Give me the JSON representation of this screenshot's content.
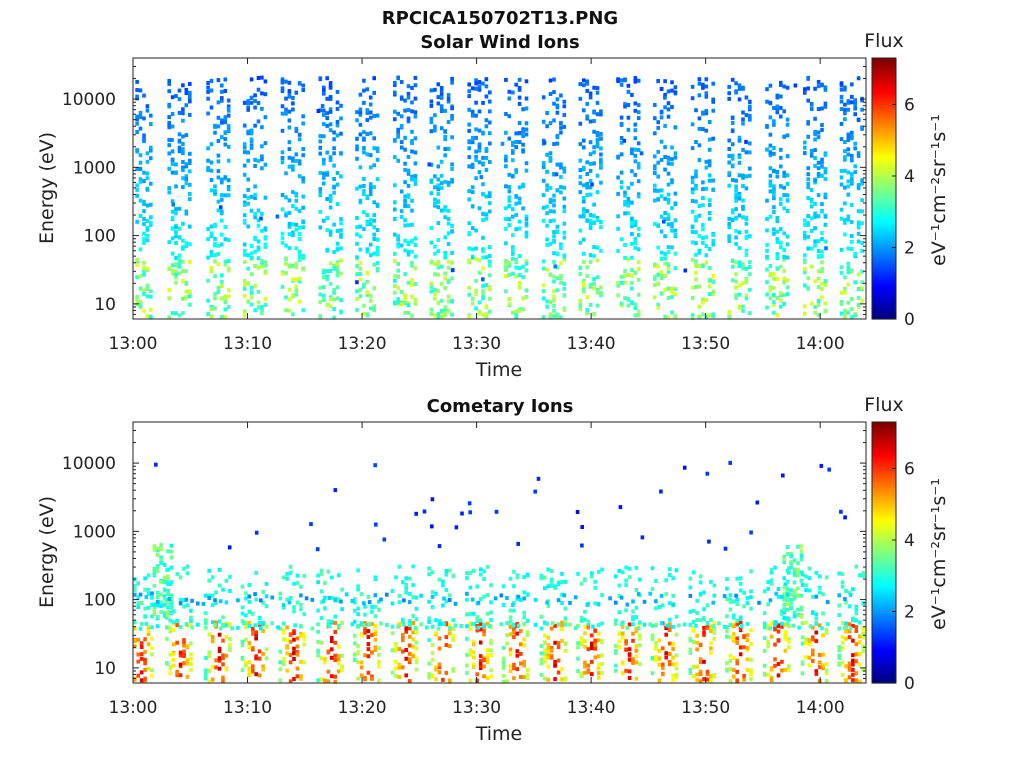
{
  "figure_title": "RPCICA150702T13.PNG",
  "chart_data": [
    {
      "type": "heatmap",
      "title": "Solar Wind Ions",
      "xlabel": "Time",
      "ylabel": "Energy (eV)",
      "y_scale": "log",
      "xlim": [
        "13:00",
        "14:04"
      ],
      "ylim": [
        6,
        40000
      ],
      "x_ticks": [
        "13:00",
        "13:10",
        "13:20",
        "13:30",
        "13:40",
        "13:50",
        "14:00"
      ],
      "y_ticks": [
        "10",
        "100",
        "1000",
        "10000"
      ],
      "y_tick_values": [
        10,
        100,
        1000,
        10000
      ],
      "colorbar": {
        "label": "Flux",
        "units": "eV⁻¹cm⁻²sr⁻¹s⁻¹",
        "range": [
          0,
          7.3
        ],
        "ticks": [
          "0",
          "2",
          "4",
          "6"
        ],
        "tick_values": [
          0,
          2,
          4,
          6
        ],
        "colormap": "jet"
      },
      "grid": false,
      "burst_times_min": [
        0.6,
        4.0,
        7.4,
        10.6,
        13.9,
        17.2,
        20.4,
        23.7,
        26.9,
        30.2,
        33.4,
        36.7,
        39.9,
        43.2,
        46.4,
        49.7,
        52.9,
        56.2,
        59.5,
        62.7
      ],
      "bursts": {
        "low_energy_ev": [
          6,
          45
        ],
        "low_flux": 3.4,
        "high_energy_ev": [
          45,
          20000
        ],
        "high_flux": 1.3
      }
    },
    {
      "type": "heatmap",
      "title": "Cometary Ions",
      "xlabel": "Time",
      "ylabel": "Energy (eV)",
      "y_scale": "log",
      "xlim": [
        "13:00",
        "14:04"
      ],
      "ylim": [
        6,
        40000
      ],
      "x_ticks": [
        "13:00",
        "13:10",
        "13:20",
        "13:30",
        "13:40",
        "13:50",
        "14:00"
      ],
      "y_ticks": [
        "10",
        "100",
        "1000",
        "10000"
      ],
      "y_tick_values": [
        10,
        100,
        1000,
        10000
      ],
      "colorbar": {
        "label": "Flux",
        "units": "eV⁻¹cm⁻²sr⁻¹s⁻¹",
        "range": [
          0,
          7.3
        ],
        "ticks": [
          "0",
          "2",
          "4",
          "6"
        ],
        "tick_values": [
          0,
          2,
          4,
          6
        ],
        "colormap": "jet"
      },
      "grid": false,
      "burst_times_min": [
        0.6,
        4.0,
        7.4,
        10.6,
        13.9,
        17.2,
        20.4,
        23.7,
        26.9,
        30.2,
        33.4,
        36.7,
        39.9,
        43.2,
        46.4,
        49.7,
        52.9,
        56.2,
        59.5,
        62.7
      ],
      "bursts": {
        "peak_energy_ev": [
          10,
          40
        ],
        "peak_flux": 5.2,
        "background_energy_ev": [
          40,
          300
        ],
        "background_flux": 2.6
      }
    }
  ]
}
